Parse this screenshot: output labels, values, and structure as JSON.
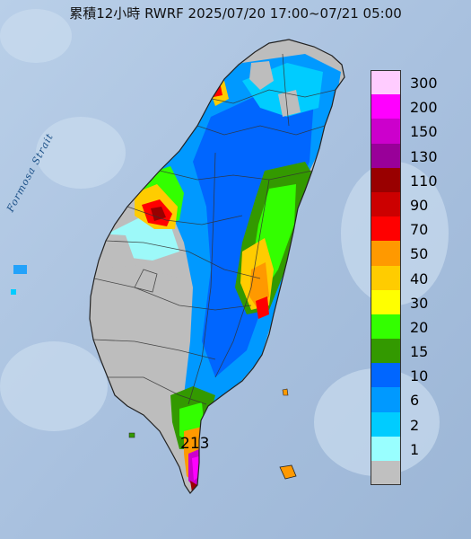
{
  "title": "累積12小時 RWRF 2025/07/20 17:00~07/21 05:00",
  "sea_label": "Formosa Strait",
  "max_value_label": "213",
  "legend": [
    {
      "label": "300",
      "color": "#ffccff"
    },
    {
      "label": "200",
      "color": "#ff00ff"
    },
    {
      "label": "150",
      "color": "#cc00cc"
    },
    {
      "label": "130",
      "color": "#990099"
    },
    {
      "label": "110",
      "color": "#990000"
    },
    {
      "label": "90",
      "color": "#cc0000"
    },
    {
      "label": "70",
      "color": "#ff0000"
    },
    {
      "label": "50",
      "color": "#ff9900"
    },
    {
      "label": "40",
      "color": "#ffcc00"
    },
    {
      "label": "30",
      "color": "#ffff00"
    },
    {
      "label": "20",
      "color": "#33ff00"
    },
    {
      "label": "15",
      "color": "#339900"
    },
    {
      "label": "10",
      "color": "#0066ff"
    },
    {
      "label": "6",
      "color": "#0099ff"
    },
    {
      "label": "2",
      "color": "#00ccff"
    },
    {
      "label": "1",
      "color": "#99ffff"
    },
    {
      "label": "",
      "color": "#c0c0c0"
    }
  ]
}
